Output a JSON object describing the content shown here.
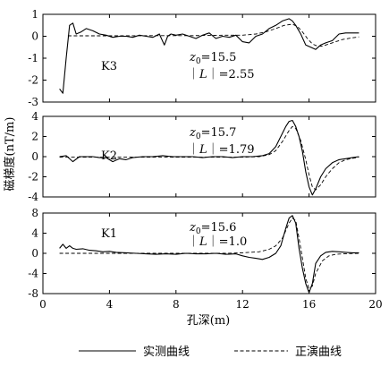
{
  "chart_data": [
    {
      "type": "line",
      "id": "K3",
      "panel_label": "K3",
      "z0_label": "z",
      "z0_sub": "0",
      "z0_value": "=15.5",
      "L_prefix": "｜",
      "L_var": "L",
      "L_value": "｜=2.55",
      "ylim": [
        -3,
        1
      ],
      "yticks": [
        "1",
        "0",
        "-1",
        "-2",
        "-3"
      ],
      "yticks_values": [
        1,
        0,
        -1,
        -2,
        -3
      ],
      "series": [
        {
          "name": "实测曲线",
          "style": "solid",
          "x": [
            1.0,
            1.2,
            1.4,
            1.6,
            1.8,
            2.0,
            2.3,
            2.6,
            3.0,
            3.4,
            3.8,
            4.2,
            4.6,
            5.0,
            5.4,
            5.8,
            6.2,
            6.6,
            7.0,
            7.3,
            7.5,
            7.7,
            8.0,
            8.4,
            8.8,
            9.2,
            9.6,
            10.0,
            10.4,
            10.8,
            11.2,
            11.6,
            12.0,
            12.4,
            12.8,
            13.2,
            13.6,
            14.0,
            14.4,
            14.8,
            15.0,
            15.2,
            15.5,
            15.8,
            16.1,
            16.4,
            16.7,
            17.0,
            17.4,
            17.8,
            18.2,
            18.6,
            19.0
          ],
          "y": [
            -2.4,
            -2.6,
            -1.0,
            0.5,
            0.6,
            0.1,
            0.2,
            0.35,
            0.25,
            0.1,
            0.05,
            -0.05,
            0.0,
            0.0,
            -0.05,
            0.05,
            0.0,
            -0.05,
            0.1,
            -0.4,
            0.0,
            0.1,
            0.05,
            0.1,
            0.0,
            -0.1,
            0.05,
            0.15,
            -0.1,
            0.0,
            -0.05,
            0.05,
            -0.25,
            -0.3,
            0.0,
            0.1,
            0.35,
            0.5,
            0.7,
            0.8,
            0.7,
            0.5,
            0.1,
            -0.4,
            -0.5,
            -0.6,
            -0.4,
            -0.3,
            -0.2,
            0.1,
            0.15,
            0.15,
            0.15
          ]
        },
        {
          "name": "正演曲线",
          "style": "dashed",
          "x": [
            1.5,
            3.0,
            5.0,
            7.0,
            9.0,
            11.0,
            12.0,
            12.8,
            13.4,
            14.0,
            14.5,
            15.0,
            15.3,
            15.6,
            15.9,
            16.2,
            16.5,
            16.8,
            17.2,
            17.6,
            18.0,
            18.5,
            19.0
          ],
          "y": [
            0.02,
            0.02,
            0.02,
            0.03,
            0.03,
            0.05,
            0.05,
            0.1,
            0.2,
            0.35,
            0.5,
            0.55,
            0.45,
            0.2,
            -0.1,
            -0.35,
            -0.45,
            -0.45,
            -0.35,
            -0.25,
            -0.15,
            -0.08,
            -0.03
          ]
        }
      ]
    },
    {
      "type": "line",
      "id": "K2",
      "panel_label": "K2",
      "z0_label": "z",
      "z0_sub": "0",
      "z0_value": "=15.7",
      "L_prefix": "｜",
      "L_var": "L",
      "L_value": "｜=1.79",
      "ylim": [
        -4,
        4
      ],
      "yticks": [
        "4",
        "2",
        "0",
        "-2",
        "-4"
      ],
      "yticks_values": [
        4,
        2,
        0,
        -2,
        -4
      ],
      "series": [
        {
          "name": "实测曲线",
          "style": "solid",
          "x": [
            1.0,
            1.4,
            1.8,
            2.2,
            2.6,
            3.0,
            3.4,
            3.8,
            4.2,
            4.6,
            5.0,
            5.4,
            6.0,
            6.6,
            7.2,
            7.8,
            8.4,
            9.0,
            9.6,
            10.2,
            10.8,
            11.4,
            12.0,
            12.6,
            13.2,
            13.6,
            14.0,
            14.3,
            14.6,
            14.8,
            15.0,
            15.2,
            15.4,
            15.6,
            15.8,
            16.0,
            16.2,
            16.4,
            16.7,
            17.0,
            17.4,
            17.8,
            18.2,
            18.6,
            19.0
          ],
          "y": [
            0.0,
            0.1,
            -0.5,
            0.0,
            0.0,
            0.0,
            -0.1,
            -0.1,
            -0.5,
            -0.2,
            -0.3,
            -0.1,
            0.0,
            0.0,
            0.1,
            0.0,
            0.0,
            0.0,
            -0.1,
            0.0,
            0.0,
            -0.1,
            0.0,
            0.0,
            0.1,
            0.3,
            1.0,
            2.0,
            3.0,
            3.5,
            3.6,
            3.0,
            2.0,
            0.5,
            -1.5,
            -3.0,
            -3.8,
            -3.2,
            -2.0,
            -1.2,
            -0.6,
            -0.3,
            -0.2,
            -0.1,
            0.0
          ]
        },
        {
          "name": "正演曲线",
          "style": "dashed",
          "x": [
            1.0,
            3.0,
            5.0,
            7.0,
            9.0,
            11.0,
            12.0,
            13.0,
            13.6,
            14.0,
            14.4,
            14.8,
            15.0,
            15.2,
            15.5,
            15.8,
            16.0,
            16.2,
            16.4,
            16.7,
            17.0,
            17.4,
            17.8,
            18.2,
            19.0
          ],
          "y": [
            -0.05,
            -0.05,
            -0.05,
            -0.05,
            -0.05,
            -0.05,
            -0.05,
            0.0,
            0.2,
            0.6,
            1.5,
            2.6,
            3.0,
            2.8,
            1.6,
            -0.3,
            -1.8,
            -3.0,
            -3.3,
            -2.8,
            -2.0,
            -1.2,
            -0.6,
            -0.3,
            -0.05
          ]
        }
      ]
    },
    {
      "type": "line",
      "id": "K1",
      "panel_label": "K1",
      "z0_label": "z",
      "z0_sub": "0",
      "z0_value": "=15.6",
      "L_prefix": "｜",
      "L_var": "L",
      "L_value": "｜=1.0",
      "ylim": [
        -8,
        8
      ],
      "yticks": [
        "8",
        "4",
        "0",
        "-4",
        "-8"
      ],
      "yticks_values": [
        8,
        4,
        0,
        -4,
        -8
      ],
      "series": [
        {
          "name": "实测曲线",
          "style": "solid",
          "x": [
            1.0,
            1.2,
            1.4,
            1.6,
            1.8,
            2.0,
            2.4,
            2.8,
            3.2,
            3.6,
            4.0,
            4.4,
            5.0,
            5.6,
            6.2,
            6.8,
            7.4,
            8.0,
            8.6,
            9.2,
            9.8,
            10.4,
            11.0,
            11.6,
            12.0,
            12.4,
            12.8,
            13.2,
            13.6,
            14.0,
            14.3,
            14.6,
            14.8,
            15.0,
            15.2,
            15.4,
            15.6,
            15.8,
            16.0,
            16.2,
            16.4,
            16.7,
            17.0,
            17.4,
            17.8,
            18.2,
            18.6,
            19.0
          ],
          "y": [
            1.0,
            1.8,
            1.0,
            1.5,
            1.0,
            0.8,
            0.9,
            0.6,
            0.5,
            0.3,
            0.4,
            0.2,
            0.1,
            0.0,
            -0.1,
            -0.2,
            -0.1,
            -0.2,
            0.0,
            -0.1,
            -0.1,
            0.0,
            -0.2,
            -0.1,
            -0.5,
            -0.8,
            -1.0,
            -1.2,
            -0.8,
            0.0,
            1.5,
            5.0,
            7.0,
            7.5,
            6.0,
            1.0,
            -3.0,
            -6.0,
            -7.8,
            -6.0,
            -2.0,
            -0.5,
            0.2,
            0.4,
            0.3,
            0.2,
            0.1,
            0.1
          ]
        },
        {
          "name": "正演曲线",
          "style": "dashed",
          "x": [
            1.0,
            3.0,
            5.0,
            7.0,
            9.0,
            11.0,
            12.0,
            13.0,
            13.6,
            14.0,
            14.4,
            14.8,
            15.0,
            15.2,
            15.4,
            15.6,
            15.8,
            16.0,
            16.2,
            16.4,
            16.8,
            17.2,
            17.6,
            18.0,
            19.0
          ],
          "y": [
            0.0,
            0.0,
            0.0,
            0.0,
            0.0,
            0.0,
            0.1,
            0.3,
            0.8,
            1.5,
            3.0,
            6.0,
            7.0,
            6.5,
            3.0,
            -1.0,
            -5.0,
            -7.0,
            -6.5,
            -4.0,
            -1.5,
            -0.5,
            -0.2,
            -0.1,
            0.0
          ]
        }
      ]
    }
  ],
  "axes": {
    "xlabel": "孔深(m)",
    "ylabel": "磁梯度(nT/m)",
    "xlim": [
      0,
      20
    ],
    "xticks": [
      "0",
      "4",
      "8",
      "12",
      "16",
      "20"
    ],
    "xticks_values": [
      0,
      4,
      8,
      12,
      16,
      20
    ]
  },
  "legend": {
    "measured": "实测曲线",
    "forward": "正演曲线"
  }
}
